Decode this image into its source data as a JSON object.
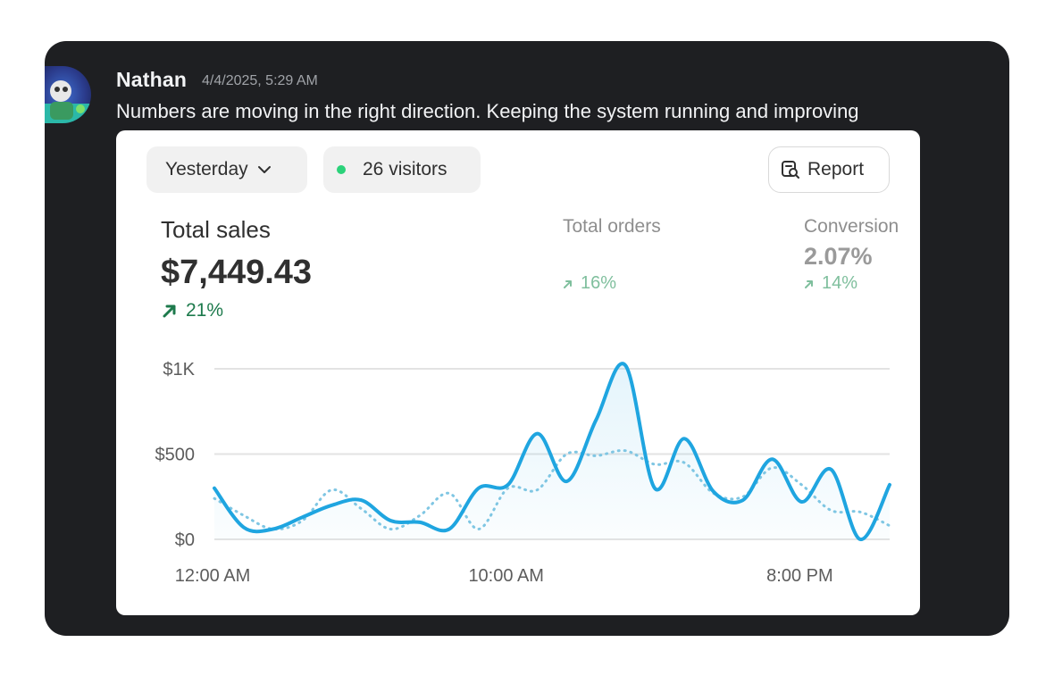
{
  "message": {
    "author": "Nathan",
    "timestamp": "4/4/2025, 5:29 AM",
    "text": "Numbers are moving in the right direction. Keeping the system running and improving"
  },
  "embed": {
    "period_select": "Yesterday",
    "visitors": "26 visitors",
    "report_button": "Report",
    "total_sales": {
      "label": "Total sales",
      "value": "$7,449.43",
      "trend": "21%"
    },
    "total_orders": {
      "label": "Total orders",
      "trend": "16%"
    },
    "conversion": {
      "label": "Conversion",
      "value": "2.07%",
      "trend": "14%"
    }
  },
  "colors": {
    "current_series": "#1fa5e0",
    "comparison_series": "#7fc6e3",
    "trend_up": "#1d7a4c"
  },
  "chart_data": {
    "type": "line",
    "y_ticks": [
      "$0",
      "$500",
      "$1K"
    ],
    "y_tick_values": [
      0,
      500,
      1000
    ],
    "x_tick_labels": [
      "12:00 AM",
      "10:00 AM",
      "8:00 PM"
    ],
    "x_tick_positions": [
      0,
      10,
      20
    ],
    "ylim": [
      0,
      1000
    ],
    "xlim": [
      0,
      23
    ],
    "grid": true,
    "series": [
      {
        "style": "solid",
        "x": [
          0,
          1,
          2,
          3,
          4,
          5,
          6,
          7,
          8,
          9,
          10,
          11,
          12,
          13,
          14,
          15,
          16,
          17,
          18,
          19,
          20,
          21,
          22,
          23
        ],
        "values": [
          300,
          70,
          60,
          130,
          200,
          230,
          110,
          100,
          60,
          300,
          320,
          620,
          340,
          700,
          1020,
          300,
          590,
          280,
          230,
          470,
          220,
          410,
          0,
          320
        ]
      },
      {
        "style": "dotted",
        "x": [
          0,
          1,
          2,
          3,
          4,
          5,
          6,
          7,
          8,
          9,
          10,
          11,
          12,
          13,
          14,
          15,
          16,
          17,
          18,
          19,
          20,
          21,
          22,
          23
        ],
        "values": [
          240,
          140,
          60,
          110,
          290,
          180,
          60,
          140,
          270,
          60,
          300,
          290,
          500,
          490,
          520,
          440,
          450,
          270,
          250,
          420,
          320,
          170,
          160,
          80
        ]
      }
    ]
  }
}
